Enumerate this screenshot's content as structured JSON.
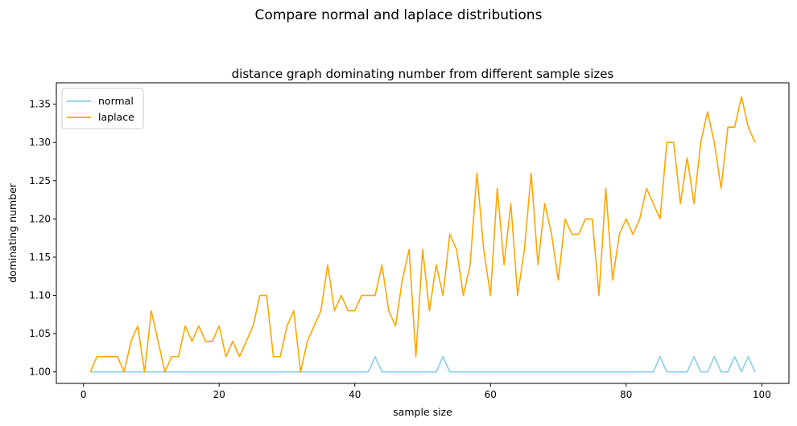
{
  "suptitle": "Compare normal and laplace distributions",
  "chart_data": {
    "type": "line",
    "title": "distance graph dominating number from different sample sizes",
    "xlabel": "sample size",
    "ylabel": "dominating number",
    "xlim": [
      -4,
      104
    ],
    "ylim": [
      0.985,
      1.378
    ],
    "xticks": [
      0,
      20,
      40,
      60,
      80,
      100
    ],
    "xtick_labels": [
      "0",
      "20",
      "40",
      "60",
      "80",
      "100"
    ],
    "yticks": [
      1.0,
      1.05,
      1.1,
      1.15,
      1.2,
      1.25,
      1.3,
      1.35
    ],
    "ytick_labels": [
      "1.00",
      "1.05",
      "1.10",
      "1.15",
      "1.20",
      "1.25",
      "1.30",
      "1.35"
    ],
    "legend_position": "top-left",
    "grid": false,
    "x": [
      1,
      2,
      3,
      4,
      5,
      6,
      7,
      8,
      9,
      10,
      11,
      12,
      13,
      14,
      15,
      16,
      17,
      18,
      19,
      20,
      21,
      22,
      23,
      24,
      25,
      26,
      27,
      28,
      29,
      30,
      31,
      32,
      33,
      34,
      35,
      36,
      37,
      38,
      39,
      40,
      41,
      42,
      43,
      44,
      45,
      46,
      47,
      48,
      49,
      50,
      51,
      52,
      53,
      54,
      55,
      56,
      57,
      58,
      59,
      60,
      61,
      62,
      63,
      64,
      65,
      66,
      67,
      68,
      69,
      70,
      71,
      72,
      73,
      74,
      75,
      76,
      77,
      78,
      79,
      80,
      81,
      82,
      83,
      84,
      85,
      86,
      87,
      88,
      89,
      90,
      91,
      92,
      93,
      94,
      95,
      96,
      97,
      98,
      99
    ],
    "series": [
      {
        "name": "normal",
        "color": "#87ceeb",
        "values": [
          1.0,
          1.0,
          1.0,
          1.0,
          1.0,
          1.0,
          1.0,
          1.0,
          1.0,
          1.0,
          1.0,
          1.0,
          1.0,
          1.0,
          1.0,
          1.0,
          1.0,
          1.0,
          1.0,
          1.0,
          1.0,
          1.0,
          1.0,
          1.0,
          1.0,
          1.0,
          1.0,
          1.0,
          1.0,
          1.0,
          1.0,
          1.0,
          1.0,
          1.0,
          1.0,
          1.0,
          1.0,
          1.0,
          1.0,
          1.0,
          1.0,
          1.0,
          1.02,
          1.0,
          1.0,
          1.0,
          1.0,
          1.0,
          1.0,
          1.0,
          1.0,
          1.0,
          1.02,
          1.0,
          1.0,
          1.0,
          1.0,
          1.0,
          1.0,
          1.0,
          1.0,
          1.0,
          1.0,
          1.0,
          1.0,
          1.0,
          1.0,
          1.0,
          1.0,
          1.0,
          1.0,
          1.0,
          1.0,
          1.0,
          1.0,
          1.0,
          1.0,
          1.0,
          1.0,
          1.0,
          1.0,
          1.0,
          1.0,
          1.0,
          1.02,
          1.0,
          1.0,
          1.0,
          1.0,
          1.02,
          1.0,
          1.0,
          1.02,
          1.0,
          1.0,
          1.02,
          1.0,
          1.02,
          1.0
        ]
      },
      {
        "name": "laplace",
        "color": "#ffa500",
        "values": [
          1.0,
          1.02,
          1.02,
          1.02,
          1.02,
          1.0,
          1.04,
          1.06,
          1.0,
          1.08,
          1.04,
          1.0,
          1.02,
          1.02,
          1.06,
          1.04,
          1.06,
          1.04,
          1.04,
          1.06,
          1.02,
          1.04,
          1.02,
          1.04,
          1.06,
          1.1,
          1.1,
          1.02,
          1.02,
          1.06,
          1.08,
          1.0,
          1.04,
          1.06,
          1.08,
          1.14,
          1.08,
          1.1,
          1.08,
          1.08,
          1.1,
          1.1,
          1.1,
          1.14,
          1.08,
          1.06,
          1.12,
          1.16,
          1.02,
          1.16,
          1.08,
          1.14,
          1.1,
          1.18,
          1.16,
          1.1,
          1.14,
          1.26,
          1.16,
          1.1,
          1.24,
          1.14,
          1.22,
          1.1,
          1.16,
          1.26,
          1.14,
          1.22,
          1.18,
          1.12,
          1.2,
          1.18,
          1.18,
          1.2,
          1.2,
          1.1,
          1.24,
          1.12,
          1.18,
          1.2,
          1.18,
          1.2,
          1.24,
          1.22,
          1.2,
          1.3,
          1.3,
          1.22,
          1.28,
          1.22,
          1.3,
          1.34,
          1.3,
          1.24,
          1.32,
          1.32,
          1.36,
          1.32,
          1.3
        ]
      }
    ]
  }
}
